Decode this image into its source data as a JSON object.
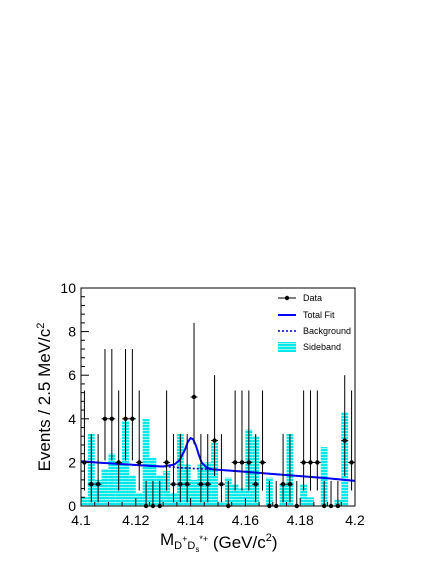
{
  "chart_data": {
    "type": "histogram",
    "xlabel": {
      "main": "M",
      "sub1": "D",
      "sup1": "+",
      "sub2": "D",
      "sub3": "s",
      "sup2": "*+",
      "unit": " (GeV/c",
      "unit_sup": "2",
      "unit_end": ")"
    },
    "ylabel": {
      "main": "Events / 2.5 MeV/c",
      "sup": "2"
    },
    "xlim": [
      4.1,
      4.2
    ],
    "ylim": [
      0,
      10
    ],
    "x_tick_labels": [
      "4.1",
      "4.12",
      "4.14",
      "4.16",
      "4.18",
      "4.2"
    ],
    "y_tick_labels": [
      "0",
      "2",
      "4",
      "6",
      "8",
      "10"
    ],
    "legend": [
      {
        "label": "Data",
        "style": "marker"
      },
      {
        "label": "Total Fit",
        "style": "solid"
      },
      {
        "label": "Background",
        "style": "dashed"
      },
      {
        "label": "Sideband",
        "style": "hatched"
      }
    ],
    "colors": {
      "data": "#000000",
      "fit": "#0000ff",
      "background": "#0000cc",
      "sideband": "#00e0e0"
    },
    "bin_width": 0.0025,
    "data": {
      "x": [
        4.10125,
        4.10375,
        4.10625,
        4.10875,
        4.11125,
        4.11375,
        4.11625,
        4.11875,
        4.12125,
        4.12375,
        4.12625,
        4.12875,
        4.13125,
        4.13375,
        4.13625,
        4.13875,
        4.14125,
        4.14375,
        4.14625,
        4.14875,
        4.15125,
        4.15375,
        4.15625,
        4.15875,
        4.16125,
        4.16375,
        4.16625,
        4.16875,
        4.17125,
        4.17375,
        4.17625,
        4.17875,
        4.18125,
        4.18375,
        4.18625,
        4.18875,
        4.19125,
        4.19375,
        4.19625,
        4.19875
      ],
      "y": [
        2,
        1,
        1,
        4,
        4,
        2,
        4,
        4,
        2,
        0,
        0,
        0,
        2,
        1,
        1,
        1,
        5,
        1,
        1,
        3,
        1,
        0,
        2,
        2,
        2,
        1,
        2,
        0,
        0,
        1,
        1,
        0,
        2,
        2,
        2,
        0,
        0,
        0,
        3,
        2
      ]
    },
    "sideband": {
      "x_start": 4.1,
      "bin_width": 0.0025,
      "values": [
        0.4,
        3.3,
        1.2,
        1.7,
        2.4,
        2.0,
        3.9,
        1.4,
        0.6,
        4.0,
        2.2,
        1.4,
        1.6,
        0.6,
        3.3,
        1.9,
        1.2,
        1.9,
        2.0,
        2.9,
        0.2,
        1.3,
        1.0,
        0.8,
        3.5,
        3.2,
        0.0,
        1.3,
        0.0,
        1.0,
        3.3,
        0.0,
        1.0,
        0.4,
        0.0,
        2.7,
        0.0,
        0.3,
        4.3,
        0.0
      ]
    },
    "total_fit": {
      "x": [
        4.1,
        4.105,
        4.11,
        4.115,
        4.12,
        4.125,
        4.13,
        4.134,
        4.136,
        4.138,
        4.139,
        4.14,
        4.141,
        4.142,
        4.143,
        4.144,
        4.146,
        4.148,
        4.15,
        4.155,
        4.16,
        4.17,
        4.18,
        4.19,
        4.2
      ],
      "y": [
        2.05,
        2.0,
        1.96,
        1.92,
        1.88,
        1.84,
        1.81,
        1.9,
        2.1,
        2.6,
        2.95,
        3.12,
        3.05,
        2.75,
        2.35,
        2.0,
        1.75,
        1.68,
        1.66,
        1.62,
        1.57,
        1.47,
        1.37,
        1.27,
        1.15
      ]
    },
    "background": {
      "x": [
        4.1,
        4.11,
        4.12,
        4.13,
        4.14,
        4.15,
        4.16,
        4.17,
        4.18,
        4.19,
        4.2
      ],
      "y": [
        2.05,
        1.96,
        1.88,
        1.81,
        1.73,
        1.66,
        1.57,
        1.47,
        1.37,
        1.27,
        1.15
      ]
    }
  }
}
